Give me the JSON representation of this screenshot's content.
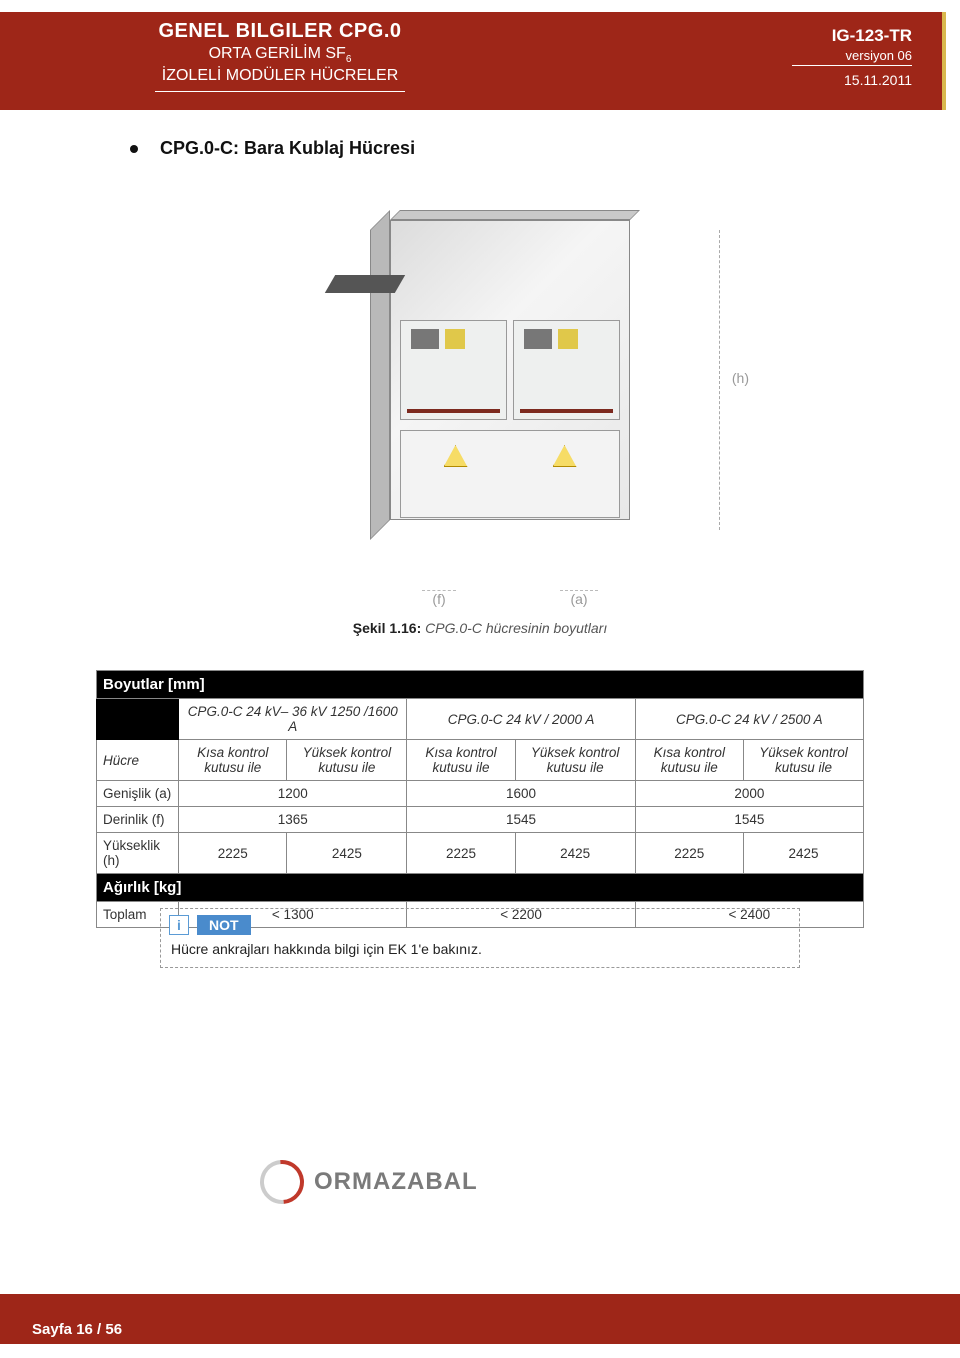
{
  "header": {
    "title_line1": "GENEL BILGILER CPG.0",
    "title_line2_pre": "ORTA GERİLİM SF",
    "title_line2_sub": "6",
    "title_line3": "İZOLELİ MODÜLER HÜCRELER",
    "doc_code": "IG-123-TR",
    "version": "versiyon 06",
    "date": "15.11.2011"
  },
  "section": {
    "heading": "CPG.0-C: Bara Kublaj Hücresi"
  },
  "figure": {
    "dim_h_label": "(h)",
    "dim_f_label": "(f)",
    "dim_a_label": "(a)",
    "caption_bold": "Şekil 1.16:",
    "caption_rest": " CPG.0-C hücresinin boyutları"
  },
  "table": {
    "title_dims": "Boyutlar [mm]",
    "col_group_labels": [
      "CPG.0-C 24 kV– 36 kV 1250 /1600 A",
      "CPG.0-C 24 kV / 2000 A",
      "CPG.0-C 24 kV / 2500 A"
    ],
    "row_hucre_label": "Hücre",
    "subcol_kisa": "Kısa kontrol kutusu ile",
    "subcol_yuksek": "Yüksek kontrol kutusu ile",
    "rows_dims": [
      {
        "label": "Genişlik (a)",
        "vals_merged": [
          "1200",
          "1600",
          "2000"
        ]
      },
      {
        "label": "Derinlik (f)",
        "vals_merged": [
          "1365",
          "1545",
          "1545"
        ]
      },
      {
        "label": "Yükseklik (h)",
        "vals_split": [
          "2225",
          "2425",
          "2225",
          "2425",
          "2225",
          "2425"
        ]
      }
    ],
    "title_weight": "Ağırlık [kg]",
    "row_total": {
      "label": "Toplam",
      "vals_merged": [
        "< 1300",
        "< 2200",
        "< 2400"
      ]
    }
  },
  "note": {
    "icon": "i",
    "title": "NOT",
    "body": "Hücre ankrajları hakkında bilgi için EK 1'e bakınız."
  },
  "logo": {
    "text": "ORMAZABAL"
  },
  "footer": {
    "page_prefix": "Sayfa ",
    "page_num": "16",
    "page_sep": " / ",
    "page_total": "56"
  },
  "colors": {
    "brand_red": "#9e2618",
    "gold": "#d9b84e",
    "note_blue": "#4a8bcc"
  }
}
